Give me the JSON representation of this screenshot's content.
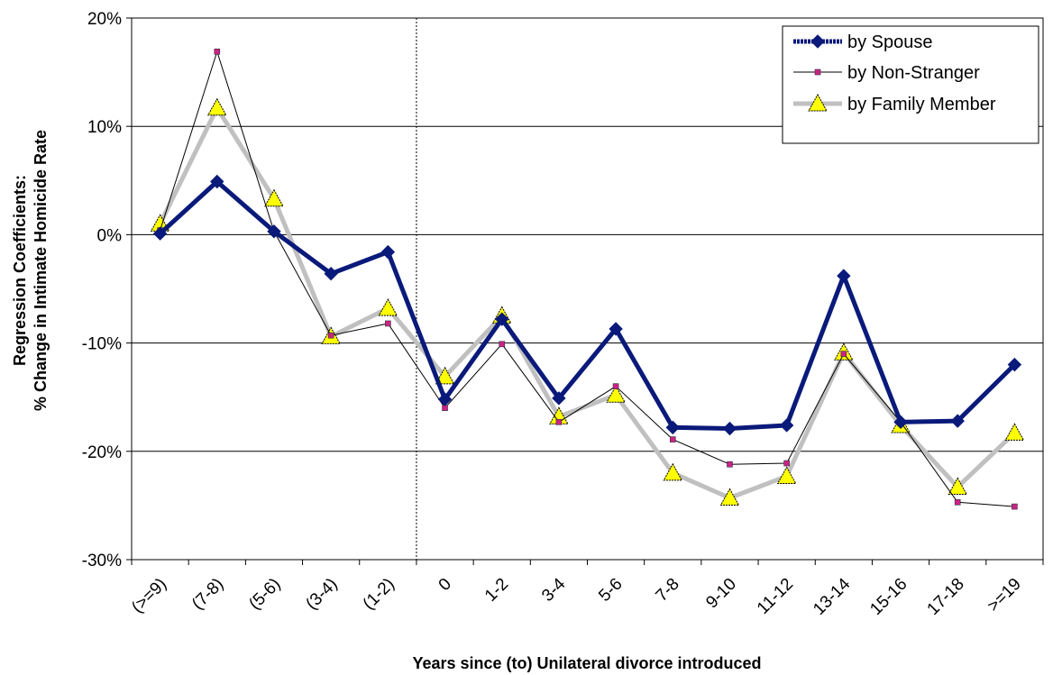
{
  "chart_data": {
    "type": "line",
    "title": "",
    "xlabel": "Years since (to) Unilateral divorce introduced",
    "ylabel_line1": "Regression Coefficients:",
    "ylabel_line2": "% Change in Intimate Homicide Rate",
    "categories": [
      "(>=9)",
      "(7-8)",
      "(5-6)",
      "(3-4)",
      "(1-2)",
      "0",
      "1-2",
      "3-4",
      "5-6",
      "7-8",
      "9-10",
      "11-12",
      "13-14",
      "15-16",
      "17-18",
      ">=19"
    ],
    "ylim": [
      -30,
      20
    ],
    "yticks": [
      20,
      10,
      0,
      -10,
      -20,
      -30
    ],
    "ytick_labels": [
      "20%",
      "10%",
      "0%",
      "-10%",
      "-20%",
      "-30%"
    ],
    "grid": true,
    "reference_line_category_index": 4.5,
    "legend_position": "top-right",
    "series": [
      {
        "name": "by Spouse",
        "color": "#0a1a7a",
        "marker": "diamond",
        "values": [
          0.1,
          4.9,
          0.3,
          -3.6,
          -1.6,
          -15.2,
          -7.8,
          -15.1,
          -8.7,
          -17.8,
          -17.9,
          -17.6,
          -3.8,
          -17.3,
          -17.2,
          -12.0
        ]
      },
      {
        "name": "by Non-Stranger",
        "color": "#000000",
        "marker_color": "#cc2288",
        "marker": "square",
        "values": [
          0.4,
          16.9,
          0.3,
          -9.3,
          -8.2,
          -16.0,
          -10.1,
          -17.3,
          -14.0,
          -18.9,
          -21.2,
          -21.1,
          -11.0,
          -17.3,
          -24.7,
          -25.1
        ]
      },
      {
        "name": "by Family Member",
        "color": "#c0c0c0",
        "marker_color": "#ffff00",
        "marker": "triangle",
        "values": [
          1.0,
          11.7,
          3.3,
          -9.4,
          -6.8,
          -13.1,
          -7.5,
          -16.8,
          -14.8,
          -22.0,
          -24.3,
          -22.3,
          -10.9,
          -17.6,
          -23.3,
          -18.3
        ]
      }
    ]
  }
}
